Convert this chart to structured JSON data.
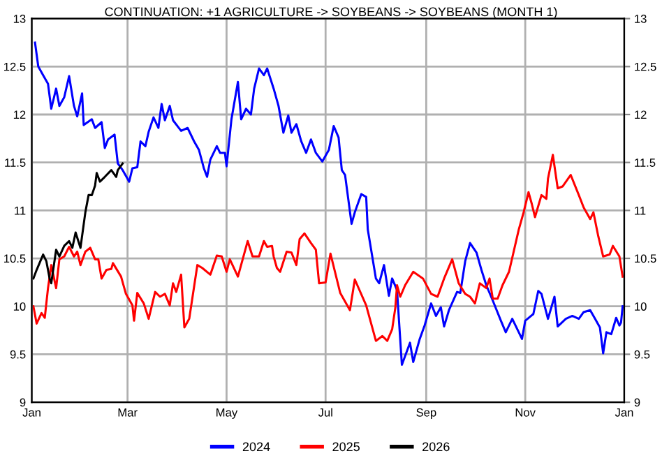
{
  "chart_data": {
    "type": "line",
    "title": "CONTINUATION: +1 AGRICULTURE -> SOYBEANS -> SOYBEANS (MONTH 1)",
    "xlim": [
      "2025-01-01",
      "2026-01-01"
    ],
    "xticks": [
      {
        "value": "2025-01-01",
        "label": "Jan"
      },
      {
        "value": "2025-03-01",
        "label": "Mar"
      },
      {
        "value": "2025-05-01",
        "label": "May"
      },
      {
        "value": "2025-07-01",
        "label": "Jul"
      },
      {
        "value": "2025-09-01",
        "label": "Sep"
      },
      {
        "value": "2025-11-01",
        "label": "Nov"
      },
      {
        "value": "2026-01-01",
        "label": "Jan"
      }
    ],
    "ylim": [
      9,
      13
    ],
    "yticks": [
      9,
      9.5,
      10,
      10.5,
      11,
      11.5,
      12,
      12.5,
      13
    ],
    "y2lim": [
      9,
      13
    ],
    "y2ticks": [
      9,
      9.5,
      10,
      10.5,
      11,
      11.5,
      12,
      12.5,
      13
    ],
    "grid": true,
    "legend": "bottom",
    "series": [
      {
        "name": "2024",
        "color": "#0000ff",
        "x": [
          "2025-01-03",
          "2025-01-05",
          "2025-01-08",
          "2025-01-11",
          "2025-01-13",
          "2025-01-16",
          "2025-01-18",
          "2025-01-21",
          "2025-01-24",
          "2025-01-27",
          "2025-01-29",
          "2025-02-01",
          "2025-02-02",
          "2025-02-07",
          "2025-02-09",
          "2025-02-13",
          "2025-02-15",
          "2025-02-17",
          "2025-02-21",
          "2025-02-23",
          "2025-02-26",
          "2025-03-02",
          "2025-03-04",
          "2025-03-07",
          "2025-03-09",
          "2025-03-12",
          "2025-03-14",
          "2025-03-17",
          "2025-03-20",
          "2025-03-22",
          "2025-03-24",
          "2025-03-27",
          "2025-03-29",
          "2025-04-03",
          "2025-04-07",
          "2025-04-11",
          "2025-04-14",
          "2025-04-17",
          "2025-04-19",
          "2025-04-21",
          "2025-04-25",
          "2025-04-27",
          "2025-04-30",
          "2025-05-01",
          "2025-05-04",
          "2025-05-08",
          "2025-05-10",
          "2025-05-13",
          "2025-05-16",
          "2025-05-18",
          "2025-05-21",
          "2025-05-24",
          "2025-05-26",
          "2025-05-30",
          "2025-06-02",
          "2025-06-05",
          "2025-06-08",
          "2025-06-10",
          "2025-06-13",
          "2025-06-16",
          "2025-06-19",
          "2025-06-22",
          "2025-06-25",
          "2025-06-29",
          "2025-07-03",
          "2025-07-06",
          "2025-07-09",
          "2025-07-11",
          "2025-07-13",
          "2025-07-17",
          "2025-07-19",
          "2025-07-23",
          "2025-07-26",
          "2025-07-27",
          "2025-08-01",
          "2025-08-03",
          "2025-08-06",
          "2025-08-09",
          "2025-08-11",
          "2025-08-14",
          "2025-08-17",
          "2025-08-22",
          "2025-08-24",
          "2025-08-28",
          "2025-08-31",
          "2025-09-04",
          "2025-09-07",
          "2025-09-10",
          "2025-09-12",
          "2025-09-15",
          "2025-09-20",
          "2025-09-22",
          "2025-09-25",
          "2025-09-28",
          "2025-10-02",
          "2025-10-05",
          "2025-10-08",
          "2025-10-12",
          "2025-10-17",
          "2025-10-20",
          "2025-10-24",
          "2025-10-30",
          "2025-11-01",
          "2025-11-06",
          "2025-11-09",
          "2025-11-11",
          "2025-11-15",
          "2025-11-19",
          "2025-11-21",
          "2025-11-26",
          "2025-11-30",
          "2025-12-04",
          "2025-12-07",
          "2025-12-11",
          "2025-12-14",
          "2025-12-17",
          "2025-12-19",
          "2025-12-21",
          "2025-12-24",
          "2025-12-27",
          "2025-12-29",
          "2025-12-30",
          "2025-12-31"
        ],
        "values": [
          12.75,
          12.5,
          12.41,
          12.32,
          12.06,
          12.27,
          12.09,
          12.18,
          12.4,
          12.09,
          11.98,
          12.22,
          11.89,
          11.95,
          11.86,
          11.92,
          11.65,
          11.74,
          11.79,
          11.49,
          11.42,
          11.3,
          11.44,
          11.45,
          11.72,
          11.67,
          11.82,
          11.97,
          11.86,
          12.11,
          11.94,
          12.09,
          11.94,
          11.83,
          11.86,
          11.72,
          11.63,
          11.44,
          11.35,
          11.53,
          11.67,
          11.6,
          11.6,
          11.46,
          11.95,
          12.34,
          11.95,
          12.06,
          12.0,
          12.27,
          12.48,
          12.41,
          12.48,
          12.27,
          12.09,
          11.81,
          11.99,
          11.81,
          11.9,
          11.72,
          11.6,
          11.74,
          11.6,
          11.51,
          11.63,
          11.88,
          11.76,
          11.42,
          11.37,
          10.86,
          10.98,
          11.17,
          11.14,
          10.8,
          10.29,
          10.24,
          10.43,
          10.11,
          10.29,
          10.17,
          9.39,
          9.62,
          9.42,
          9.66,
          9.8,
          10.03,
          9.9,
          9.99,
          9.79,
          9.96,
          10.15,
          10.14,
          10.47,
          10.66,
          10.56,
          10.38,
          10.22,
          10.06,
          9.85,
          9.73,
          9.87,
          9.66,
          9.85,
          9.92,
          10.16,
          10.13,
          9.87,
          10.1,
          9.79,
          9.87,
          9.9,
          9.87,
          9.94,
          9.96,
          9.87,
          9.78,
          9.51,
          9.73,
          9.71,
          9.88,
          9.8,
          9.83,
          10.0
        ]
      },
      {
        "name": "2025",
        "color": "#ff0000",
        "x": [
          "2025-01-02",
          "2025-01-04",
          "2025-01-07",
          "2025-01-09",
          "2025-01-11",
          "2025-01-13",
          "2025-01-16",
          "2025-01-18",
          "2025-01-21",
          "2025-01-24",
          "2025-01-27",
          "2025-01-29",
          "2025-01-31",
          "2025-02-03",
          "2025-02-06",
          "2025-02-09",
          "2025-02-11",
          "2025-02-13",
          "2025-02-16",
          "2025-02-19",
          "2025-02-20",
          "2025-02-25",
          "2025-02-28",
          "2025-03-04",
          "2025-03-05",
          "2025-03-07",
          "2025-03-11",
          "2025-03-14",
          "2025-03-18",
          "2025-03-21",
          "2025-03-24",
          "2025-03-27",
          "2025-03-29",
          "2025-03-31",
          "2025-04-03",
          "2025-04-05",
          "2025-04-08",
          "2025-04-13",
          "2025-04-16",
          "2025-04-21",
          "2025-04-25",
          "2025-04-28",
          "2025-05-01",
          "2025-05-03",
          "2025-05-08",
          "2025-05-14",
          "2025-05-17",
          "2025-05-21",
          "2025-05-24",
          "2025-05-26",
          "2025-05-29",
          "2025-05-30",
          "2025-06-01",
          "2025-06-03",
          "2025-06-07",
          "2025-06-10",
          "2025-06-13",
          "2025-06-15",
          "2025-06-18",
          "2025-06-22",
          "2025-06-25",
          "2025-06-27",
          "2025-07-01",
          "2025-07-04",
          "2025-07-10",
          "2025-07-16",
          "2025-07-19",
          "2025-07-26",
          "2025-08-01",
          "2025-08-05",
          "2025-08-08",
          "2025-08-11",
          "2025-08-13",
          "2025-08-14",
          "2025-08-16",
          "2025-08-19",
          "2025-08-24",
          "2025-08-30",
          "2025-09-04",
          "2025-09-08",
          "2025-09-12",
          "2025-09-17",
          "2025-09-21",
          "2025-09-25",
          "2025-09-28",
          "2025-10-01",
          "2025-10-04",
          "2025-10-08",
          "2025-10-10",
          "2025-10-12",
          "2025-10-15",
          "2025-10-18",
          "2025-10-22",
          "2025-10-28",
          "2025-10-31",
          "2025-11-03",
          "2025-11-05",
          "2025-11-07",
          "2025-11-11",
          "2025-11-14",
          "2025-11-15",
          "2025-11-18",
          "2025-11-21",
          "2025-11-24",
          "2025-11-29",
          "2025-12-04",
          "2025-12-07",
          "2025-12-11",
          "2025-12-13",
          "2025-12-16",
          "2025-12-19",
          "2025-12-23",
          "2025-12-25",
          "2025-12-29",
          "2025-12-31"
        ],
        "values": [
          10.0,
          9.82,
          9.93,
          9.88,
          10.19,
          10.43,
          10.19,
          10.49,
          10.52,
          10.62,
          10.52,
          10.57,
          10.43,
          10.57,
          10.61,
          10.49,
          10.49,
          10.29,
          10.38,
          10.39,
          10.45,
          10.31,
          10.13,
          10.01,
          9.85,
          10.14,
          10.03,
          9.87,
          10.15,
          10.1,
          10.13,
          10.01,
          10.24,
          10.15,
          10.33,
          9.78,
          9.87,
          10.43,
          10.4,
          10.33,
          10.53,
          10.52,
          10.36,
          10.49,
          10.31,
          10.68,
          10.52,
          10.52,
          10.68,
          10.62,
          10.63,
          10.52,
          10.4,
          10.36,
          10.57,
          10.56,
          10.43,
          10.7,
          10.76,
          10.66,
          10.59,
          10.24,
          10.25,
          10.55,
          10.14,
          9.96,
          10.28,
          10.01,
          9.64,
          9.69,
          9.64,
          9.76,
          9.99,
          10.22,
          10.1,
          10.22,
          10.36,
          10.29,
          10.13,
          10.1,
          10.29,
          10.49,
          10.24,
          10.13,
          10.1,
          10.03,
          10.24,
          10.19,
          10.29,
          10.08,
          10.08,
          10.22,
          10.36,
          10.8,
          10.98,
          11.19,
          11.07,
          10.93,
          11.16,
          11.12,
          11.33,
          11.58,
          11.23,
          11.25,
          11.37,
          11.16,
          11.03,
          10.91,
          10.98,
          10.73,
          10.52,
          10.54,
          10.63,
          10.52,
          10.31
        ]
      },
      {
        "name": "2026",
        "color": "#000000",
        "x": [
          "2025-01-02",
          "2025-01-04",
          "2025-01-08",
          "2025-01-10",
          "2025-01-12",
          "2025-01-13",
          "2025-01-16",
          "2025-01-18",
          "2025-01-21",
          "2025-01-24",
          "2025-01-26",
          "2025-01-28",
          "2025-01-31",
          "2025-02-03",
          "2025-02-05",
          "2025-02-07",
          "2025-02-09",
          "2025-02-10",
          "2025-02-12",
          "2025-02-15",
          "2025-02-19",
          "2025-02-22",
          "2025-02-23",
          "2025-02-26"
        ],
        "values": [
          10.29,
          10.38,
          10.54,
          10.47,
          10.29,
          10.24,
          10.59,
          10.52,
          10.63,
          10.68,
          10.61,
          10.77,
          10.61,
          10.98,
          11.16,
          11.16,
          11.26,
          11.39,
          11.3,
          11.35,
          11.42,
          11.35,
          11.42,
          11.49
        ]
      }
    ]
  }
}
